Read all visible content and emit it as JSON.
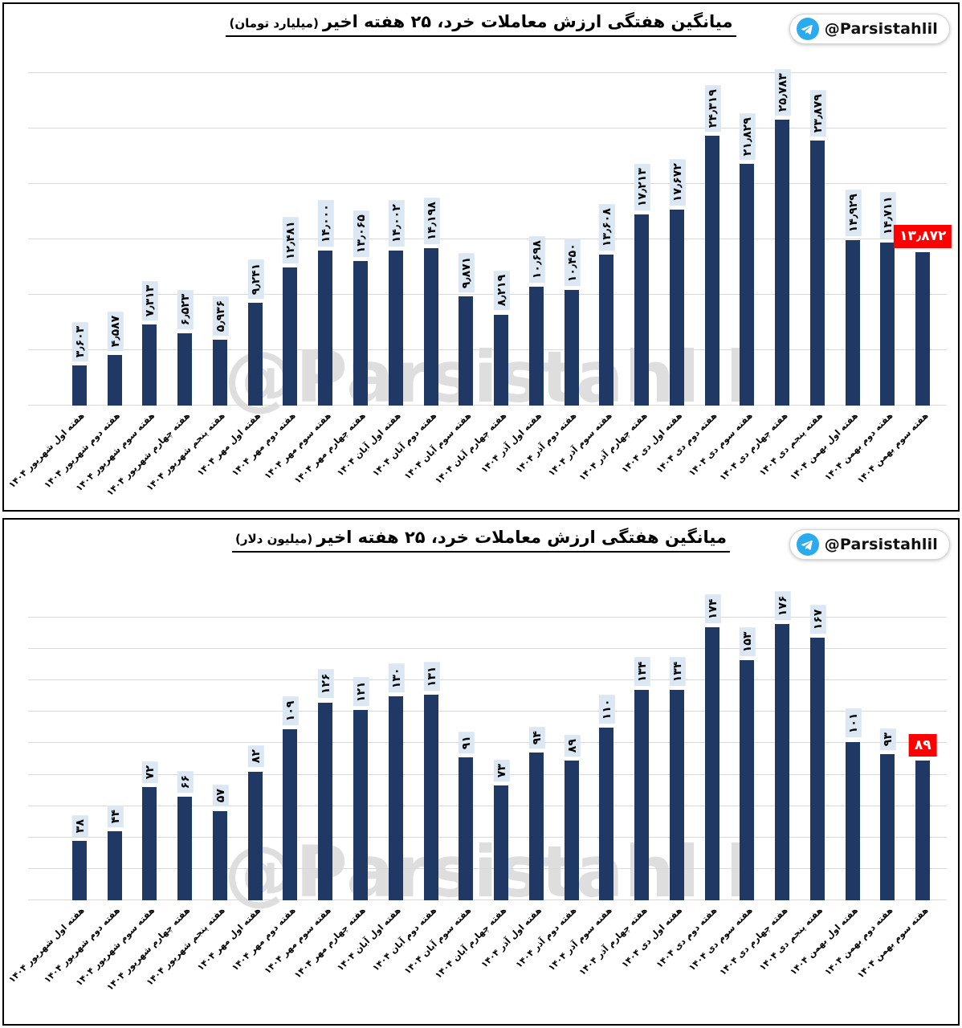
{
  "branding": {
    "handle": "@Parsistahlil",
    "watermark": "@Parsistahlil",
    "telegram_blue": "#2AABEE"
  },
  "categories": [
    "هفته اول شهریور ۱۴۰۴",
    "هفته دوم شهریور ۱۴۰۴",
    "هفته سوم شهریور ۱۴۰۴",
    "هفته چهارم شهریور ۱۴۰۴",
    "هفته پنجم شهریور ۱۴۰۴",
    "هفته اول مهر ۱۴۰۴",
    "هفته دوم مهر ۱۴۰۴",
    "هفته سوم مهر ۱۴۰۴",
    "هفته چهارم مهر ۱۴۰۴",
    "هفته اول آبان ۱۴۰۴",
    "هفته دوم آبان ۱۴۰۴",
    "هفته سوم آبان ۱۴۰۴",
    "هفته چهارم آبان ۱۴۰۴",
    "هفته اول آذر ۱۴۰۴",
    "هفته دوم آذر ۱۴۰۴",
    "هفته سوم آذر ۱۴۰۴",
    "هفته چهارم آذر ۱۴۰۴",
    "هفته اول دی ۱۴۰۴",
    "هفته دوم دی ۱۴۰۴",
    "هفته سوم دی ۱۴۰۴",
    "هفته چهارم دی ۱۴۰۴",
    "هفته پنجم دی ۱۴۰۴",
    "هفته اول بهمن ۱۴۰۴",
    "هفته دوم بهمن ۱۴۰۴",
    "هفته سوم بهمن ۱۴۰۴"
  ],
  "chart_data": [
    {
      "type": "bar",
      "title": "میانگین هفتگی ارزش معاملات خرد، ۲۵ هفته اخیر",
      "unit": "(میلیارد تومان)",
      "xlabel": "",
      "ylabel": "",
      "ylim": [
        0,
        30000
      ],
      "grid_step": 5000,
      "grid": true,
      "legend": "none",
      "values": [
        3603,
        4587,
        7313,
        6523,
        5936,
        9241,
        12481,
        14000,
        13065,
        14002,
        14198,
        9871,
        8219,
        10698,
        10450,
        13608,
        17213,
        17672,
        24319,
        21829,
        25783,
        23879,
        14929,
        14711,
        13872
      ],
      "value_labels": [
        "۳٫۶۰۳",
        "۴٫۵۸۷",
        "۷٫۳۱۳",
        "۶٫۵۲۳",
        "۵٫۹۳۶",
        "۹٫۲۴۱",
        "۱۲٫۴۸۱",
        "۱۴٫۰۰۰",
        "۱۳٫۰۶۵",
        "۱۴٫۰۰۲",
        "۱۴٫۱۹۸",
        "۹٫۸۷۱",
        "۸٫۲۱۹",
        "۱۰٫۶۹۸",
        "۱۰٫۴۵۰",
        "۱۳٫۶۰۸",
        "۱۷٫۲۱۳",
        "۱۷٫۶۷۲",
        "۲۴٫۳۱۹",
        "۲۱٫۸۲۹",
        "۲۵٫۷۸۳",
        "۲۳٫۸۷۹",
        "۱۴٫۹۲۹",
        "۱۴٫۷۱۱",
        "۱۳٫۸۷۲"
      ],
      "highlight_index": 24,
      "bar_color": "#203864",
      "label_bg": "#dbe8f4",
      "highlight_bg": "#ff0000",
      "highlight_fg": "#ffffff",
      "grid_color": "#d9d9d9"
    },
    {
      "type": "bar",
      "title": "میانگین هفتگی ارزش معاملات خرد، ۲۵ هفته اخیر",
      "unit": "(میلیون دلار)",
      "xlabel": "",
      "ylabel": "",
      "ylim": [
        0,
        180
      ],
      "grid_step": 20,
      "grid": true,
      "legend": "none",
      "values": [
        38,
        44,
        72,
        66,
        57,
        82,
        109,
        126,
        121,
        130,
        131,
        91,
        73,
        94,
        89,
        110,
        134,
        134,
        174,
        153,
        176,
        167,
        101,
        93,
        89
      ],
      "value_labels": [
        "۳۸",
        "۴۴",
        "۷۲",
        "۶۶",
        "۵۷",
        "۸۲",
        "۱۰۹",
        "۱۲۶",
        "۱۲۱",
        "۱۳۰",
        "۱۳۱",
        "۹۱",
        "۷۳",
        "۹۴",
        "۸۹",
        "۱۱۰",
        "۱۳۴",
        "۱۳۴",
        "۱۷۴",
        "۱۵۳",
        "۱۷۶",
        "۱۶۷",
        "۱۰۱",
        "۹۳",
        "۸۹"
      ],
      "highlight_index": 24,
      "bar_color": "#203864",
      "label_bg": "#dbe8f4",
      "highlight_bg": "#ff0000",
      "highlight_fg": "#ffffff",
      "grid_color": "#d9d9d9"
    }
  ]
}
